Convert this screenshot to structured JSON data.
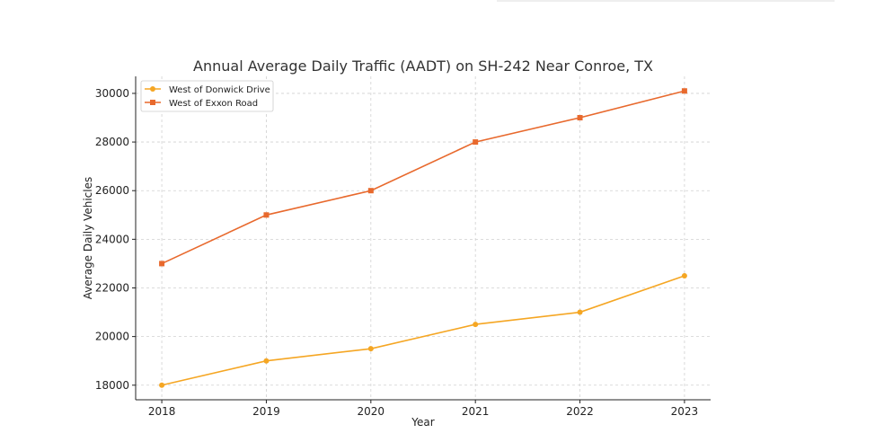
{
  "chart_data": {
    "type": "line",
    "title": "Annual Average Daily Traffic (AADT) on SH-242 Near Conroe, TX",
    "xlabel": "Year",
    "ylabel": "Average Daily Vehicles",
    "x": [
      2018,
      2019,
      2020,
      2021,
      2022,
      2023
    ],
    "x_tick_labels": [
      "2018",
      "2019",
      "2020",
      "2021",
      "2022",
      "2023"
    ],
    "y_ticks": [
      18000,
      20000,
      22000,
      24000,
      26000,
      28000,
      30000
    ],
    "y_tick_labels": [
      "18000",
      "20000",
      "22000",
      "24000",
      "26000",
      "28000",
      "30000"
    ],
    "ylim": [
      17400,
      30700
    ],
    "xlim": [
      2017.75,
      2023.25
    ],
    "grid": true,
    "legend_position": "top-left",
    "series": [
      {
        "name": "West of Donwick Drive",
        "values": [
          18000,
          19000,
          19500,
          20500,
          21000,
          22500
        ],
        "color": "#f5a623",
        "marker": "circle"
      },
      {
        "name": "West of Exxon Road",
        "values": [
          23000,
          25000,
          26000,
          28000,
          29000,
          30100
        ],
        "color": "#e8692d",
        "marker": "square"
      }
    ]
  }
}
